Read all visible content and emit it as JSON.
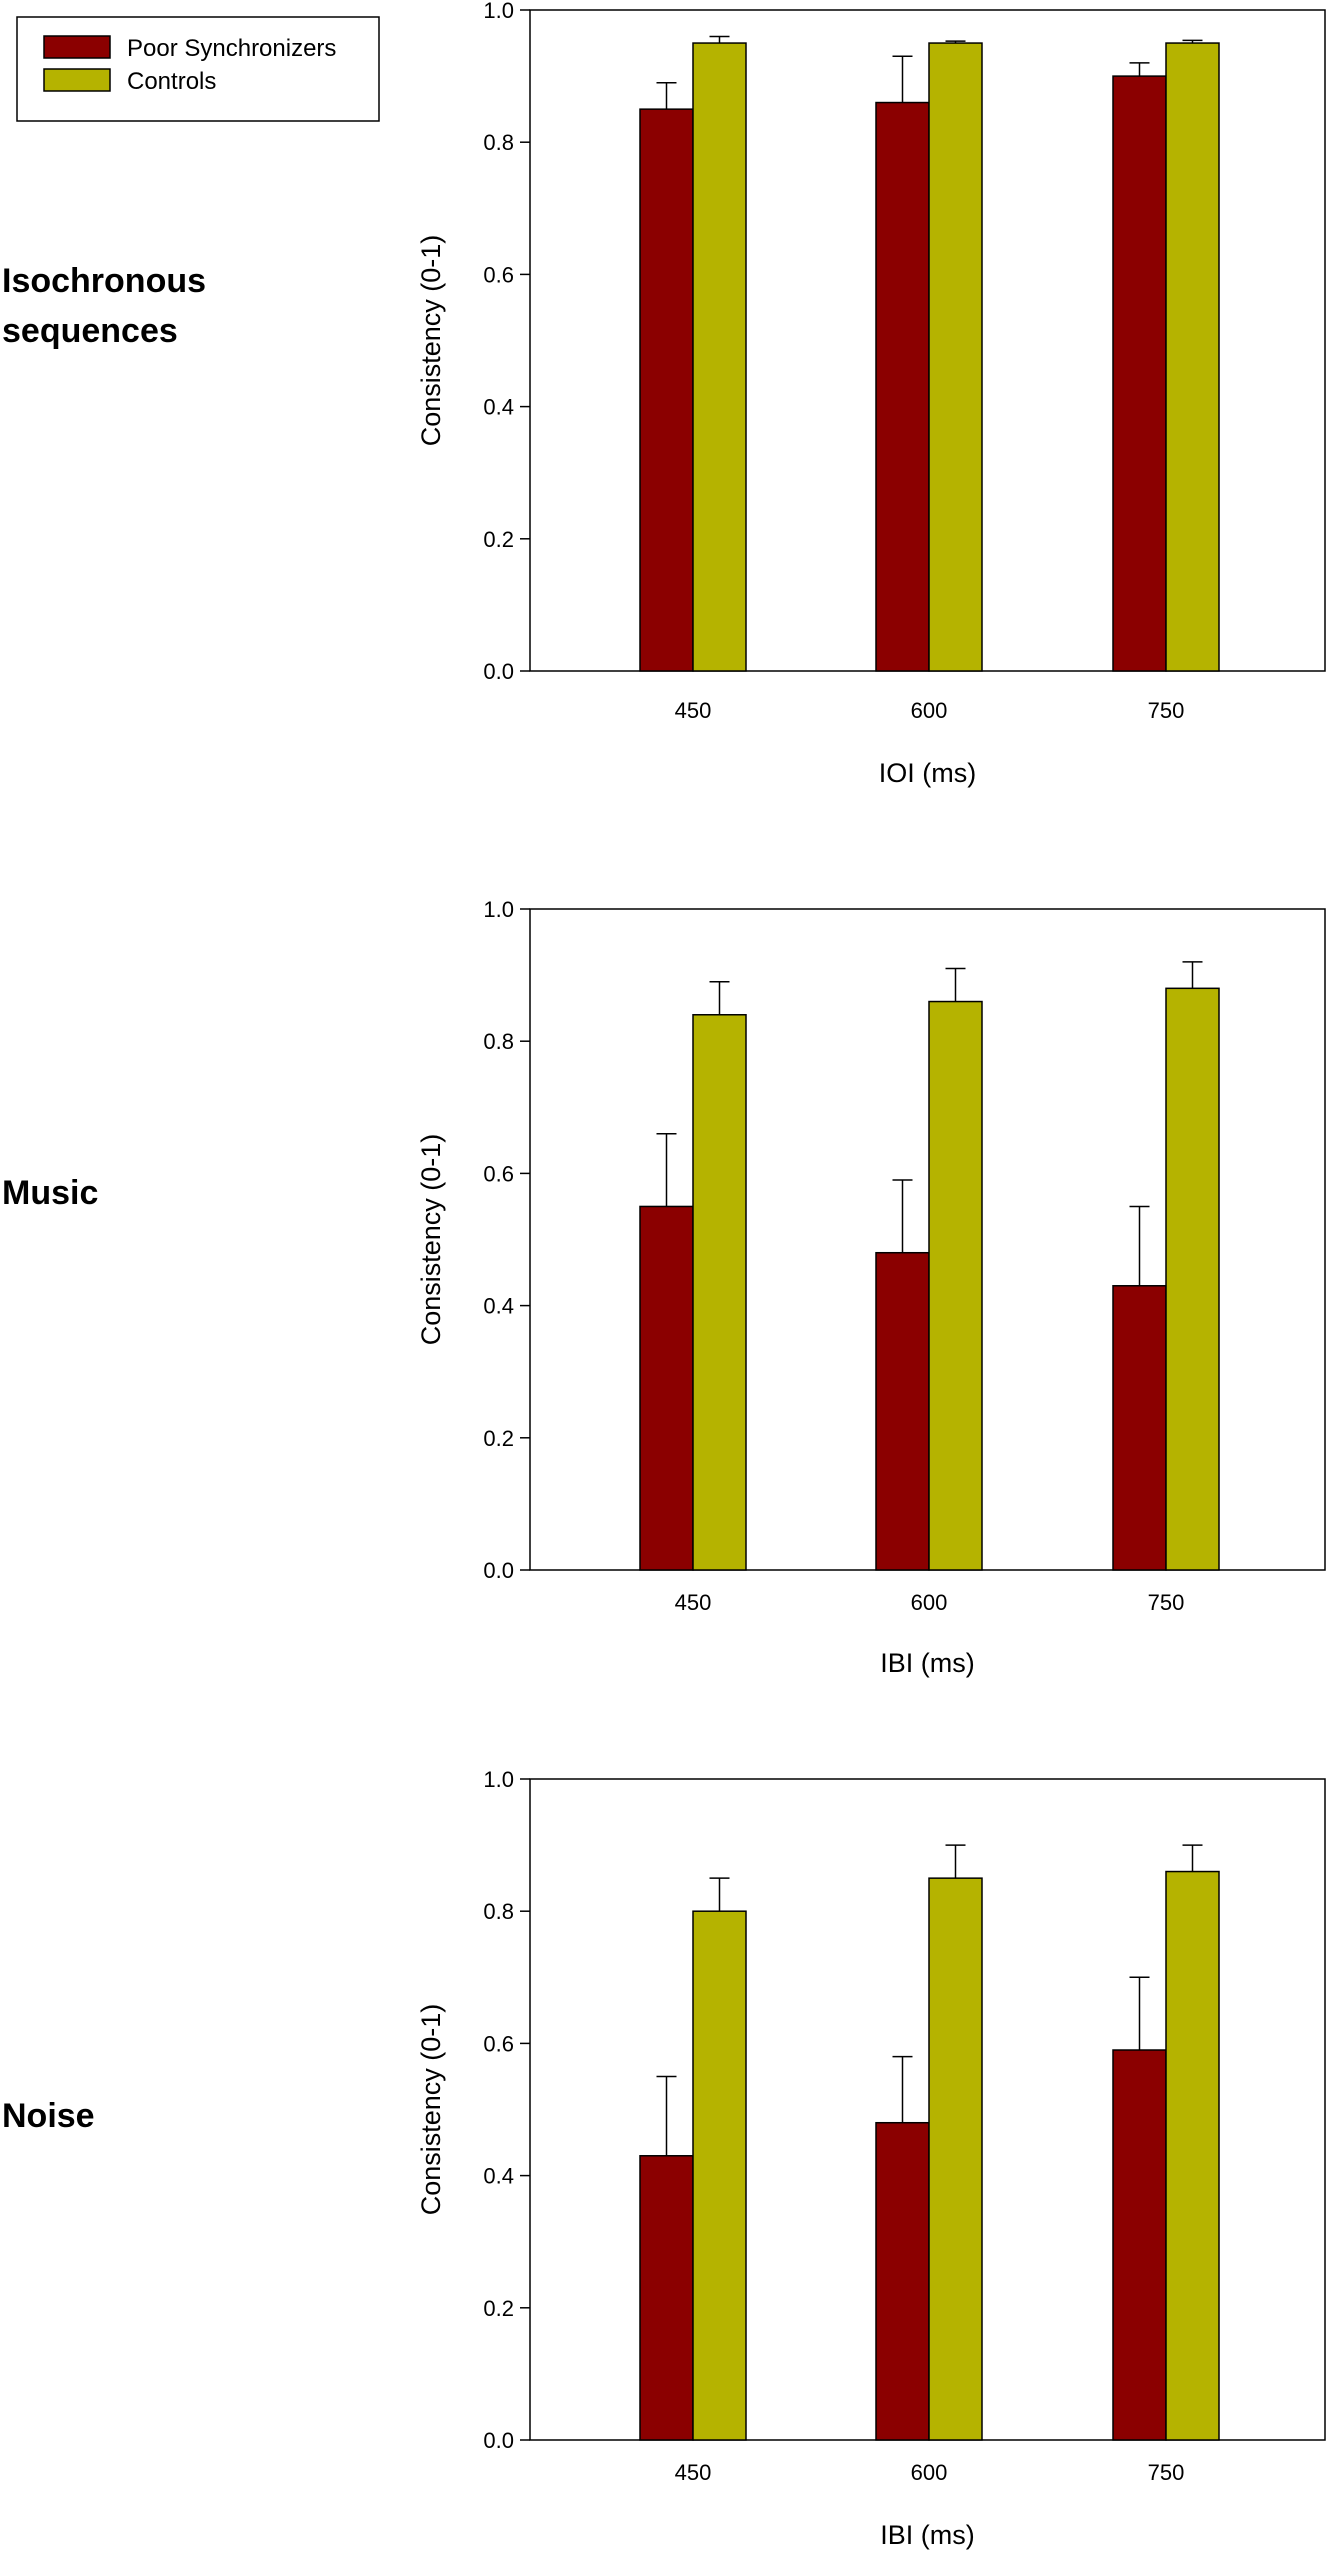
{
  "legend": {
    "placement": "top-left",
    "items": [
      {
        "label": "Poor Synchronizers",
        "color": "#8b0000"
      },
      {
        "label": "Controls",
        "color": "#b5b300"
      }
    ]
  },
  "chart_data": [
    {
      "type": "bar",
      "row_label": [
        "Isochronous",
        "sequences"
      ],
      "xlabel": "IOI (ms)",
      "ylabel": "Consistency (0-1)",
      "ylim": [
        0,
        1.0
      ],
      "yticks": [
        "0.0",
        "0.2",
        "0.4",
        "0.6",
        "0.8",
        "1.0"
      ],
      "categories": [
        "450",
        "600",
        "750"
      ],
      "grid": false,
      "series": [
        {
          "name": "Poor Synchronizers",
          "color": "#8b0000",
          "values": [
            0.85,
            0.86,
            0.9
          ],
          "errors": [
            0.04,
            0.07,
            0.02
          ]
        },
        {
          "name": "Controls",
          "color": "#b5b300",
          "values": [
            0.95,
            0.95,
            0.95
          ],
          "errors": [
            0.01,
            0.003,
            0.004
          ]
        }
      ]
    },
    {
      "type": "bar",
      "row_label": [
        "Music"
      ],
      "xlabel": "IBI (ms)",
      "ylabel": "Consistency (0-1)",
      "ylim": [
        0,
        1.0
      ],
      "yticks": [
        "0.0",
        "0.2",
        "0.4",
        "0.6",
        "0.8",
        "1.0"
      ],
      "categories": [
        "450",
        "600",
        "750"
      ],
      "grid": false,
      "series": [
        {
          "name": "Poor Synchronizers",
          "color": "#8b0000",
          "values": [
            0.55,
            0.48,
            0.43
          ],
          "errors": [
            0.11,
            0.11,
            0.12
          ]
        },
        {
          "name": "Controls",
          "color": "#b5b300",
          "values": [
            0.84,
            0.86,
            0.88
          ],
          "errors": [
            0.05,
            0.05,
            0.04
          ]
        }
      ]
    },
    {
      "type": "bar",
      "row_label": [
        "Noise"
      ],
      "xlabel": "IBI (ms)",
      "ylabel": "Consistency (0-1)",
      "ylim": [
        0,
        1.0
      ],
      "yticks": [
        "0.0",
        "0.2",
        "0.4",
        "0.6",
        "0.8",
        "1.0"
      ],
      "categories": [
        "450",
        "600",
        "750"
      ],
      "grid": false,
      "series": [
        {
          "name": "Poor Synchronizers",
          "color": "#8b0000",
          "values": [
            0.43,
            0.48,
            0.59
          ],
          "errors": [
            0.12,
            0.1,
            0.11
          ]
        },
        {
          "name": "Controls",
          "color": "#b5b300",
          "values": [
            0.8,
            0.85,
            0.86
          ],
          "errors": [
            0.05,
            0.05,
            0.04
          ]
        }
      ]
    }
  ]
}
